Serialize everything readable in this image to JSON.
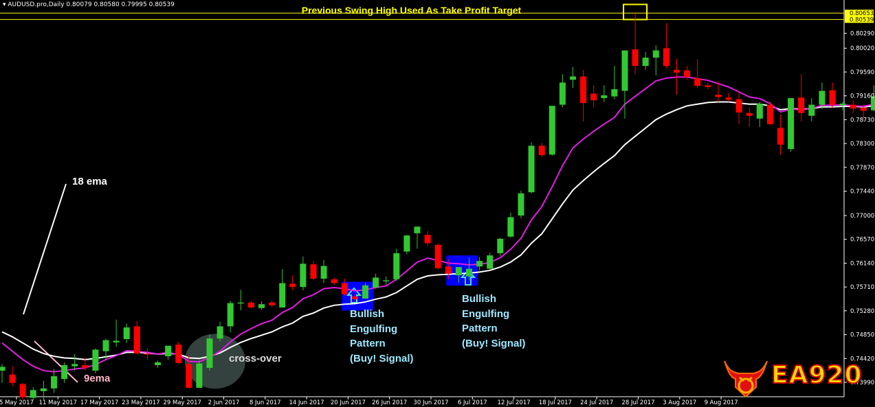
{
  "header": {
    "symbol_line": "AUDUSD.pro,Daily  0.80079 0.80580 0.79995 0.80539",
    "title": "Previous Swing High Used As Take Profit Target"
  },
  "annotations": {
    "ema18_label": "18 ema",
    "ema9_label": "9ema",
    "crossover_label": "cross-over",
    "pattern1_text": "Bullish\nEngulfing\nPattern\n(Buy! Signal)",
    "pattern2_text": "Bullish\nEngulfing\nPattern\n(Buy! Signal)"
  },
  "logo": {
    "text": "EA920"
  },
  "colors": {
    "background": "#000000",
    "bull": "#32c832",
    "bear": "#ff0000",
    "ema9": "#e01ee0",
    "ema18": "#ffffff",
    "title": "#ffff00",
    "pattern_box": "#0000ff"
  },
  "chart_data": {
    "type": "candlestick",
    "title": "Previous Swing High Used As Take Profit Target",
    "symbol": "AUDUSD.pro,Daily",
    "ylim": [
      0.7373,
      0.8089
    ],
    "price_markers": [
      "0.80653",
      "0.80539"
    ],
    "y_ticks": [
      "0.80290",
      "0.80020",
      "0.79590",
      "0.79160",
      "0.78730",
      "0.78300",
      "0.77870",
      "0.77440",
      "0.77000",
      "0.76570",
      "0.76140",
      "0.75710",
      "0.75280",
      "0.74850",
      "0.74420",
      "0.73990"
    ],
    "x_ticks": [
      "5 May 2017",
      "11 May 2017",
      "17 May 2017",
      "23 May 2017",
      "29 May 2017",
      "2 Jun 2017",
      "8 Jun 2017",
      "14 Jun 2017",
      "20 Jun 2017",
      "26 Jun 2017",
      "30 Jun 2017",
      "6 Jul 2017",
      "12 Jul 2017",
      "18 Jul 2017",
      "24 Jul 2017",
      "28 Jul 2017",
      "3 Aug 2017",
      "9 Aug 2017"
    ],
    "candles": [
      {
        "o": 0.742,
        "h": 0.7432,
        "l": 0.7398,
        "c": 0.7427
      },
      {
        "o": 0.7413,
        "h": 0.7428,
        "l": 0.7392,
        "c": 0.7398
      },
      {
        "o": 0.7396,
        "h": 0.7398,
        "l": 0.7368,
        "c": 0.7372
      },
      {
        "o": 0.7371,
        "h": 0.739,
        "l": 0.7367,
        "c": 0.7385
      },
      {
        "o": 0.7383,
        "h": 0.7402,
        "l": 0.7367,
        "c": 0.7388
      },
      {
        "o": 0.7388,
        "h": 0.7423,
        "l": 0.738,
        "c": 0.741
      },
      {
        "o": 0.7405,
        "h": 0.7435,
        "l": 0.7398,
        "c": 0.743
      },
      {
        "o": 0.7428,
        "h": 0.745,
        "l": 0.742,
        "c": 0.7432
      },
      {
        "o": 0.743,
        "h": 0.7443,
        "l": 0.742,
        "c": 0.7425
      },
      {
        "o": 0.742,
        "h": 0.746,
        "l": 0.7415,
        "c": 0.7458
      },
      {
        "o": 0.7455,
        "h": 0.7478,
        "l": 0.744,
        "c": 0.7475
      },
      {
        "o": 0.7471,
        "h": 0.7512,
        "l": 0.7463,
        "c": 0.7474
      },
      {
        "o": 0.7477,
        "h": 0.7505,
        "l": 0.747,
        "c": 0.7498
      },
      {
        "o": 0.75,
        "h": 0.751,
        "l": 0.7449,
        "c": 0.7451
      },
      {
        "o": 0.7451,
        "h": 0.7461,
        "l": 0.744,
        "c": 0.7449
      },
      {
        "o": 0.743,
        "h": 0.7438,
        "l": 0.7425,
        "c": 0.7435
      },
      {
        "o": 0.7446,
        "h": 0.7465,
        "l": 0.744,
        "c": 0.7465
      },
      {
        "o": 0.7467,
        "h": 0.7472,
        "l": 0.7432,
        "c": 0.7434
      },
      {
        "o": 0.7432,
        "h": 0.7448,
        "l": 0.7388,
        "c": 0.7389
      },
      {
        "o": 0.7389,
        "h": 0.7438,
        "l": 0.7389,
        "c": 0.7433
      },
      {
        "o": 0.7425,
        "h": 0.7485,
        "l": 0.742,
        "c": 0.7478
      },
      {
        "o": 0.7478,
        "h": 0.7508,
        "l": 0.7473,
        "c": 0.75
      },
      {
        "o": 0.75,
        "h": 0.7546,
        "l": 0.7489,
        "c": 0.7542
      },
      {
        "o": 0.7542,
        "h": 0.7566,
        "l": 0.7529,
        "c": 0.7543
      },
      {
        "o": 0.7543,
        "h": 0.7546,
        "l": 0.7532,
        "c": 0.7534
      },
      {
        "o": 0.7533,
        "h": 0.7545,
        "l": 0.753,
        "c": 0.754
      },
      {
        "o": 0.7543,
        "h": 0.7546,
        "l": 0.7535,
        "c": 0.7538
      },
      {
        "o": 0.7534,
        "h": 0.7603,
        "l": 0.7534,
        "c": 0.7578
      },
      {
        "o": 0.7577,
        "h": 0.7592,
        "l": 0.7565,
        "c": 0.7571
      },
      {
        "o": 0.7571,
        "h": 0.7626,
        "l": 0.7565,
        "c": 0.7613
      },
      {
        "o": 0.7612,
        "h": 0.7618,
        "l": 0.7583,
        "c": 0.7586
      },
      {
        "o": 0.7586,
        "h": 0.762,
        "l": 0.7578,
        "c": 0.7609
      },
      {
        "o": 0.7585,
        "h": 0.7588,
        "l": 0.7575,
        "c": 0.7578
      },
      {
        "o": 0.7578,
        "h": 0.7586,
        "l": 0.7555,
        "c": 0.7558
      },
      {
        "o": 0.7554,
        "h": 0.7558,
        "l": 0.7544,
        "c": 0.7549
      },
      {
        "o": 0.755,
        "h": 0.7578,
        "l": 0.755,
        "c": 0.7574
      },
      {
        "o": 0.757,
        "h": 0.7595,
        "l": 0.7568,
        "c": 0.7588
      },
      {
        "o": 0.7582,
        "h": 0.759,
        "l": 0.7575,
        "c": 0.7583
      },
      {
        "o": 0.7585,
        "h": 0.764,
        "l": 0.7582,
        "c": 0.7632
      },
      {
        "o": 0.7635,
        "h": 0.7665,
        "l": 0.763,
        "c": 0.7664
      },
      {
        "o": 0.7668,
        "h": 0.7677,
        "l": 0.764,
        "c": 0.768
      },
      {
        "o": 0.7665,
        "h": 0.7672,
        "l": 0.7645,
        "c": 0.765
      },
      {
        "o": 0.7647,
        "h": 0.765,
        "l": 0.7603,
        "c": 0.7605
      },
      {
        "o": 0.7608,
        "h": 0.7622,
        "l": 0.7585,
        "c": 0.7595
      },
      {
        "o": 0.7592,
        "h": 0.7605,
        "l": 0.7579,
        "c": 0.7607
      },
      {
        "o": 0.759,
        "h": 0.7624,
        "l": 0.7583,
        "c": 0.7604
      },
      {
        "o": 0.7608,
        "h": 0.7625,
        "l": 0.7601,
        "c": 0.7618
      },
      {
        "o": 0.7604,
        "h": 0.7633,
        "l": 0.7603,
        "c": 0.7628
      },
      {
        "o": 0.7632,
        "h": 0.766,
        "l": 0.7627,
        "c": 0.7658
      },
      {
        "o": 0.7662,
        "h": 0.7705,
        "l": 0.766,
        "c": 0.7697
      },
      {
        "o": 0.77,
        "h": 0.7745,
        "l": 0.7695,
        "c": 0.774
      },
      {
        "o": 0.7742,
        "h": 0.7832,
        "l": 0.774,
        "c": 0.7826
      },
      {
        "o": 0.7826,
        "h": 0.7831,
        "l": 0.7805,
        "c": 0.7809
      },
      {
        "o": 0.781,
        "h": 0.7898,
        "l": 0.7808,
        "c": 0.7898
      },
      {
        "o": 0.79,
        "h": 0.7955,
        "l": 0.7895,
        "c": 0.794
      },
      {
        "o": 0.7945,
        "h": 0.7968,
        "l": 0.793,
        "c": 0.7951
      },
      {
        "o": 0.7951,
        "h": 0.7963,
        "l": 0.787,
        "c": 0.7903
      },
      {
        "o": 0.792,
        "h": 0.7935,
        "l": 0.7895,
        "c": 0.7908
      },
      {
        "o": 0.7912,
        "h": 0.7935,
        "l": 0.7905,
        "c": 0.7917
      },
      {
        "o": 0.7915,
        "h": 0.797,
        "l": 0.791,
        "c": 0.7928
      },
      {
        "o": 0.7925,
        "h": 0.7995,
        "l": 0.7875,
        "c": 0.7998
      },
      {
        "o": 0.8,
        "h": 0.8065,
        "l": 0.7955,
        "c": 0.797
      },
      {
        "o": 0.797,
        "h": 0.7995,
        "l": 0.7963,
        "c": 0.7985
      },
      {
        "o": 0.7985,
        "h": 0.8007,
        "l": 0.7953,
        "c": 0.7998
      },
      {
        "o": 0.8002,
        "h": 0.8047,
        "l": 0.7965,
        "c": 0.797
      },
      {
        "o": 0.7963,
        "h": 0.7983,
        "l": 0.7918,
        "c": 0.7958
      },
      {
        "o": 0.7962,
        "h": 0.797,
        "l": 0.7945,
        "c": 0.795
      },
      {
        "o": 0.7948,
        "h": 0.7982,
        "l": 0.793,
        "c": 0.7934
      },
      {
        "o": 0.7935,
        "h": 0.7939,
        "l": 0.7928,
        "c": 0.7932
      },
      {
        "o": 0.7918,
        "h": 0.7942,
        "l": 0.7905,
        "c": 0.7914
      },
      {
        "o": 0.7913,
        "h": 0.7921,
        "l": 0.7905,
        "c": 0.7909
      },
      {
        "o": 0.791,
        "h": 0.7925,
        "l": 0.7865,
        "c": 0.7886
      },
      {
        "o": 0.7885,
        "h": 0.7895,
        "l": 0.786,
        "c": 0.788
      },
      {
        "o": 0.7875,
        "h": 0.7905,
        "l": 0.786,
        "c": 0.7902
      },
      {
        "o": 0.79,
        "h": 0.7905,
        "l": 0.7863,
        "c": 0.7865
      },
      {
        "o": 0.7858,
        "h": 0.7882,
        "l": 0.781,
        "c": 0.7828
      },
      {
        "o": 0.782,
        "h": 0.791,
        "l": 0.7815,
        "c": 0.7912
      },
      {
        "o": 0.7913,
        "h": 0.7955,
        "l": 0.787,
        "c": 0.7885
      },
      {
        "o": 0.788,
        "h": 0.7912,
        "l": 0.787,
        "c": 0.79
      },
      {
        "o": 0.79,
        "h": 0.794,
        "l": 0.7892,
        "c": 0.7925
      },
      {
        "o": 0.7926,
        "h": 0.794,
        "l": 0.7895,
        "c": 0.79
      },
      {
        "o": 0.7899,
        "h": 0.7905,
        "l": 0.789,
        "c": 0.7902
      },
      {
        "o": 0.79,
        "h": 0.7908,
        "l": 0.7885,
        "c": 0.7893
      },
      {
        "o": 0.7895,
        "h": 0.79,
        "l": 0.787,
        "c": 0.7889
      },
      {
        "o": 0.789,
        "h": 0.7935,
        "l": 0.7888,
        "c": 0.7915
      },
      {
        "o": 0.7919,
        "h": 0.7965,
        "l": 0.7915,
        "c": 0.7958
      }
    ],
    "ema9": [
      0.747,
      0.7455,
      0.744,
      0.7428,
      0.742,
      0.7418,
      0.742,
      0.7423,
      0.7425,
      0.7431,
      0.744,
      0.7447,
      0.7456,
      0.7455,
      0.7453,
      0.745,
      0.7453,
      0.7449,
      0.7437,
      0.7436,
      0.7444,
      0.7455,
      0.7472,
      0.7486,
      0.7496,
      0.7505,
      0.7511,
      0.7525,
      0.7534,
      0.755,
      0.7557,
      0.7568,
      0.757,
      0.7568,
      0.7564,
      0.7566,
      0.757,
      0.7573,
      0.7585,
      0.76,
      0.7616,
      0.7623,
      0.7619,
      0.7614,
      0.7613,
      0.7611,
      0.7612,
      0.7615,
      0.7624,
      0.7639,
      0.7659,
      0.7692,
      0.7716,
      0.7752,
      0.779,
      0.7822,
      0.7838,
      0.7852,
      0.7865,
      0.7877,
      0.7901,
      0.7915,
      0.7929,
      0.7943,
      0.7948,
      0.795,
      0.795,
      0.7947,
      0.7944,
      0.7938,
      0.7932,
      0.7923,
      0.7914,
      0.7911,
      0.7902,
      0.7887,
      0.7892,
      0.7891,
      0.7893,
      0.7899,
      0.7899,
      0.79,
      0.7898,
      0.7897,
      0.7901,
      0.7913
    ],
    "ema18": [
      0.749,
      0.7481,
      0.747,
      0.7459,
      0.7451,
      0.7446,
      0.7443,
      0.7442,
      0.744,
      0.7442,
      0.7445,
      0.7448,
      0.7453,
      0.7453,
      0.7452,
      0.745,
      0.7451,
      0.745,
      0.7443,
      0.7442,
      0.7446,
      0.7452,
      0.7462,
      0.7471,
      0.7478,
      0.7484,
      0.749,
      0.7499,
      0.7506,
      0.7518,
      0.7524,
      0.7533,
      0.7538,
      0.754,
      0.7541,
      0.7544,
      0.7549,
      0.7553,
      0.7561,
      0.7573,
      0.7585,
      0.7591,
      0.7593,
      0.7594,
      0.7595,
      0.7596,
      0.7598,
      0.7601,
      0.7607,
      0.7616,
      0.7629,
      0.765,
      0.7667,
      0.7694,
      0.7721,
      0.7746,
      0.7763,
      0.7779,
      0.7794,
      0.7808,
      0.7828,
      0.7843,
      0.7858,
      0.7873,
      0.7883,
      0.7891,
      0.7898,
      0.7901,
      0.7904,
      0.7905,
      0.7905,
      0.7903,
      0.7901,
      0.7901,
      0.7898,
      0.7891,
      0.7893,
      0.7892,
      0.7893,
      0.7896,
      0.7896,
      0.7897,
      0.7897,
      0.7896,
      0.7898,
      0.7904
    ]
  }
}
